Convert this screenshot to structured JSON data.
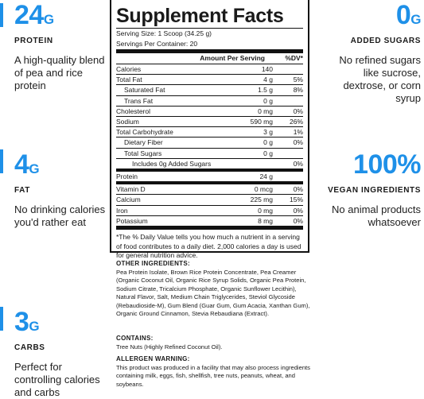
{
  "colors": {
    "accent": "#1e90e8",
    "text": "#1a1a1a"
  },
  "left": [
    {
      "big": "24",
      "unit": "G",
      "head": "PROTEIN",
      "desc": "A high-quality blend of pea and rice protein"
    },
    {
      "big": "4",
      "unit": "G",
      "head": "FAT",
      "desc": "No drinking calories you'd rather eat"
    },
    {
      "big": "3",
      "unit": "G",
      "head": "CARBS",
      "desc": "Perfect for controlling calories and carbs"
    }
  ],
  "right": [
    {
      "big": "0",
      "unit": "G",
      "head": "ADDED SUGARS",
      "desc": "No refined sugars like sucrose, dextrose, or corn syrup"
    },
    {
      "big": "100%",
      "unit": "",
      "head": "VEGAN INGREDIENTS",
      "desc": "No animal products whatsoever"
    }
  ],
  "facts": {
    "title": "Supplement Facts",
    "serving_size": "Serving Size: 1 Scoop (34.25 g)",
    "servings": "Servings Per Container: 20",
    "header_amount": "Amount Per Serving",
    "header_dv": "%DV*",
    "rows": [
      {
        "name": "Calories",
        "amount": "140",
        "dv": "",
        "bold": false
      },
      {
        "name": "Total Fat",
        "amount": "4 g",
        "dv": "5%",
        "bold": false
      },
      {
        "name": "Saturated Fat",
        "amount": "1.5 g",
        "dv": "8%",
        "bold": false,
        "indent": 1
      },
      {
        "name": "Trans Fat",
        "amount": "0 g",
        "dv": "",
        "bold": false,
        "indent": 1
      },
      {
        "name": "Cholesterol",
        "amount": "0 mg",
        "dv": "0%",
        "bold": false
      },
      {
        "name": "Sodium",
        "amount": "590 mg",
        "dv": "26%",
        "bold": false
      },
      {
        "name": "Total Carbohydrate",
        "amount": "3 g",
        "dv": "1%",
        "bold": false
      },
      {
        "name": "Dietary Fiber",
        "amount": "0 g",
        "dv": "0%",
        "bold": false,
        "indent": 1
      },
      {
        "name": "Total Sugars",
        "amount": "0 g",
        "dv": "",
        "bold": false,
        "indent": 1
      },
      {
        "name": "Includes 0g Added Sugars",
        "amount": "",
        "dv": "0%",
        "bold": false,
        "indent": 2
      },
      {
        "name": "Protein",
        "amount": "24 g",
        "dv": "",
        "bold": false,
        "thick": true
      },
      {
        "name": "Vitamin D",
        "amount": "0 mcg",
        "dv": "0%",
        "bold": false,
        "thick": true
      },
      {
        "name": "Calcium",
        "amount": "225 mg",
        "dv": "15%",
        "bold": false
      },
      {
        "name": "Iron",
        "amount": "0 mg",
        "dv": "0%",
        "bold": false
      },
      {
        "name": "Potassium",
        "amount": "8 mg",
        "dv": "0%",
        "bold": false
      }
    ],
    "footnote": "*The % Daily Value tells you how much a nutrient in a serving of food contributes to a daily diet. 2,000 calories a day is used for general nutrition advice."
  },
  "other_ingredients": {
    "title": "OTHER INGREDIENTS:",
    "text": "Pea Protein Isolate, Brown Rice Protein Concentrate, Pea Creamer (Organic Coconut Oil, Organic Rice Syrup Solids, Organic Pea Protein, Sodium Citrate, Tricalcium Phosphate, Organic Sunflower Lecithin), Natural Flavor, Salt, Medium Chain Triglycerides, Steviol Glycoside (Rebaudioside-M), Gum Blend (Guar Gum, Gum Acacia, Xanthan Gum), Organic Ground Cinnamon, Stevia Rebaudiana (Extract)."
  },
  "contains": {
    "title": "CONTAINS:",
    "text": "Tree Nuts (Highly Refined Coconut Oil)."
  },
  "allergen": {
    "title": "ALLERGEN WARNING:",
    "text": "This product was produced in a facility that may also process ingredients containing milk, eggs, fish, shellfish, tree nuts, peanuts, wheat, and soybeans."
  }
}
